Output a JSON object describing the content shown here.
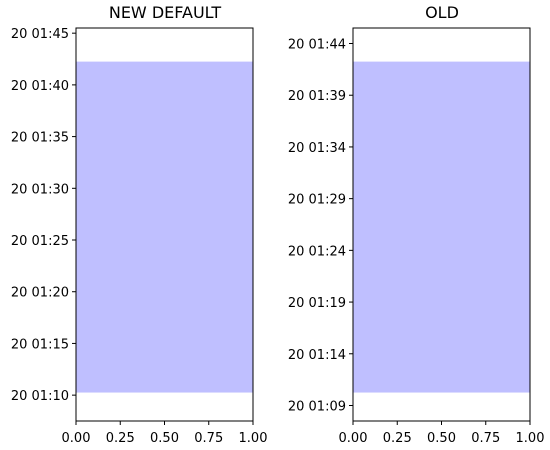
{
  "chart_data": [
    {
      "type": "area",
      "title": "NEW DEFAULT",
      "xlabel": "",
      "ylabel": "",
      "xlim": [
        0,
        1
      ],
      "ylim": [
        "20 01:07:30",
        "20 01:45:30"
      ],
      "x_ticks": [
        "0.00",
        "0.25",
        "0.50",
        "0.75",
        "1.00"
      ],
      "y_ticks": [
        "20 01:10",
        "20 01:15",
        "20 01:20",
        "20 01:25",
        "20 01:30",
        "20 01:35",
        "20 01:40",
        "20 01:45"
      ],
      "span": {
        "y_start": "20 01:10:15",
        "y_end": "20 01:42:15",
        "x_start": 0,
        "x_end": 1,
        "color": "#bfbfff"
      },
      "grid": false,
      "legend": "none"
    },
    {
      "type": "area",
      "title": "OLD",
      "xlabel": "",
      "ylabel": "",
      "xlim": [
        0,
        1
      ],
      "ylim": [
        "20 01:07:30",
        "20 01:45:30"
      ],
      "x_ticks": [
        "0.00",
        "0.25",
        "0.50",
        "0.75",
        "1.00"
      ],
      "y_ticks": [
        "20 01:09",
        "20 01:14",
        "20 01:19",
        "20 01:24",
        "20 01:29",
        "20 01:34",
        "20 01:39",
        "20 01:44"
      ],
      "span": {
        "y_start": "20 01:10:15",
        "y_end": "20 01:42:15",
        "x_start": 0,
        "x_end": 1,
        "color": "#bfbfff"
      },
      "grid": false,
      "legend": "none"
    }
  ]
}
